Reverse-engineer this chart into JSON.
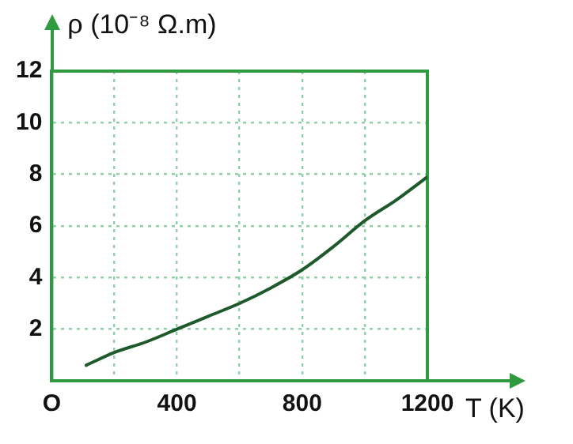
{
  "chart_data": {
    "type": "line",
    "xlabel": "T (K)",
    "ylabel": "ρ (10⁻⁸ Ω.m)",
    "x": [
      110,
      200,
      300,
      400,
      500,
      600,
      700,
      800,
      900,
      1000,
      1100,
      1200
    ],
    "series": [
      {
        "color": "#1f5a2c",
        "values": [
          0.6,
          1.1,
          1.5,
          2.0,
          2.5,
          3.0,
          3.6,
          4.3,
          5.2,
          6.2,
          7.0,
          7.9
        ]
      }
    ],
    "xlim": [
      0,
      1200
    ],
    "ylim": [
      0,
      12
    ],
    "xticks": [
      {
        "value": 0,
        "label": "O"
      },
      {
        "value": 200,
        "label": null
      },
      400,
      {
        "value": 600,
        "label": null
      },
      800,
      {
        "value": 1000,
        "label": null
      },
      1200
    ],
    "yticks": [
      {
        "value": 0,
        "label": null
      },
      2,
      4,
      6,
      8,
      10,
      12
    ],
    "grid": true
  }
}
